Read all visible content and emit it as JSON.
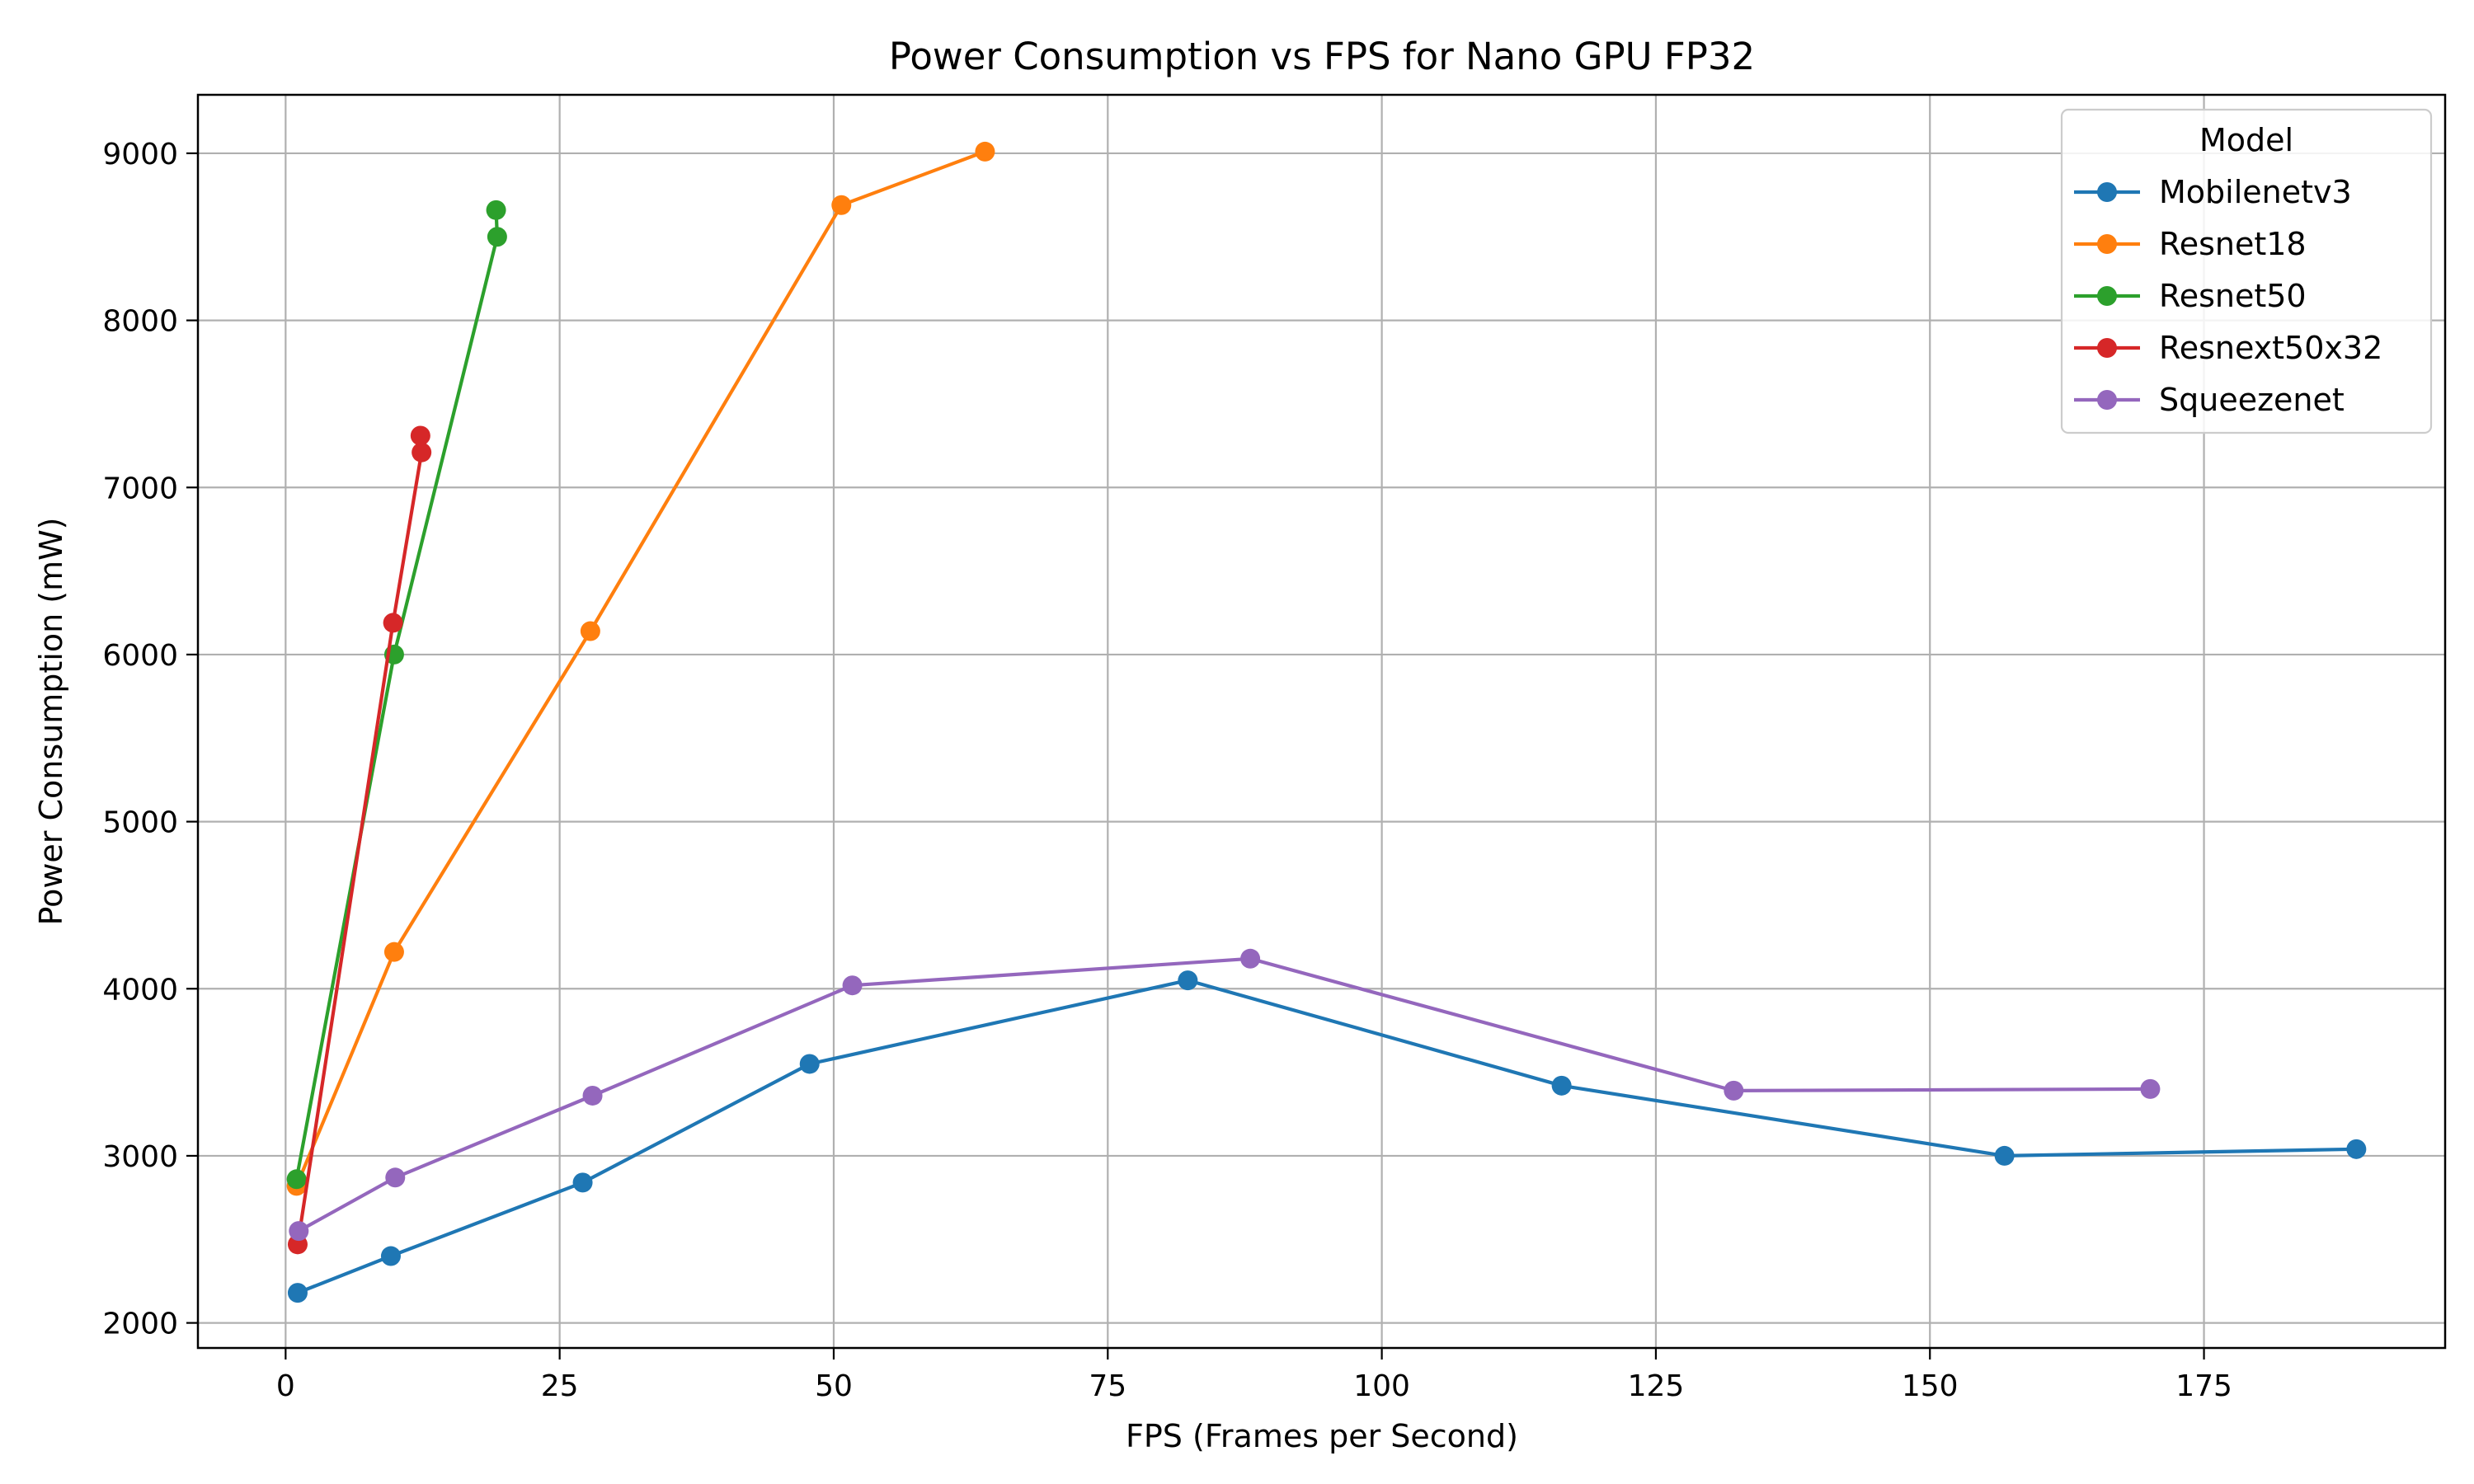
{
  "chart_data": {
    "type": "line",
    "title": "Power Consumption vs FPS for Nano GPU FP32",
    "xlabel": "FPS (Frames per Second)",
    "ylabel": "Power Consumption (mW)",
    "xlim": [
      -8,
      197
    ],
    "ylim": [
      1850,
      9350
    ],
    "xticks": [
      0,
      25,
      50,
      75,
      100,
      125,
      150,
      175
    ],
    "yticks": [
      2000,
      3000,
      4000,
      5000,
      6000,
      7000,
      8000,
      9000
    ],
    "grid": true,
    "legend": {
      "title": "Model",
      "placement": "top-right"
    },
    "series": [
      {
        "name": "Mobilenetv3",
        "color": "#1f77b4",
        "points": [
          [
            1.1,
            2180
          ],
          [
            9.6,
            2400
          ],
          [
            27.1,
            2840
          ],
          [
            47.8,
            3550
          ],
          [
            82.3,
            4050
          ],
          [
            116.4,
            3420
          ],
          [
            156.8,
            3000
          ],
          [
            188.9,
            3040
          ]
        ]
      },
      {
        "name": "Resnet18",
        "color": "#ff7f0e",
        "points": [
          [
            1.0,
            2820
          ],
          [
            9.9,
            4220
          ],
          [
            27.8,
            6140
          ],
          [
            50.7,
            8690
          ],
          [
            63.8,
            9010
          ]
        ]
      },
      {
        "name": "Resnet50",
        "color": "#2ca02c",
        "points": [
          [
            1.0,
            2860
          ],
          [
            9.9,
            6000
          ],
          [
            19.3,
            8500
          ],
          [
            19.2,
            8660
          ]
        ]
      },
      {
        "name": "Resnext50x32",
        "color": "#d62728",
        "points": [
          [
            1.1,
            2470
          ],
          [
            9.8,
            6190
          ],
          [
            12.4,
            7210
          ],
          [
            12.3,
            7310
          ]
        ]
      },
      {
        "name": "Squeezenet",
        "color": "#9467bd",
        "points": [
          [
            1.2,
            2550
          ],
          [
            10.0,
            2870
          ],
          [
            28.0,
            3360
          ],
          [
            51.7,
            4020
          ],
          [
            88.0,
            4180
          ],
          [
            132.1,
            3390
          ],
          [
            170.1,
            3400
          ]
        ]
      }
    ]
  }
}
